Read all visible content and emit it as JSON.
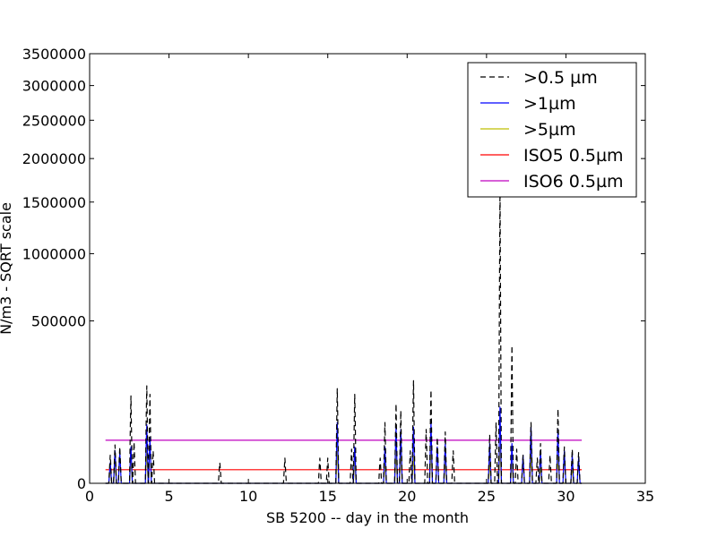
{
  "chart_data": {
    "type": "line",
    "xlabel": "SB 5200 -- day in the month",
    "ylabel": "N/m3 - SQRT scale",
    "y_scale": "sqrt",
    "xlim": [
      0,
      35
    ],
    "ylim": [
      0,
      3500000
    ],
    "grid": false,
    "legend_position": "top-right",
    "x_ticks": [
      0,
      5,
      10,
      15,
      20,
      25,
      30,
      35
    ],
    "y_ticks": [
      0,
      500000,
      1000000,
      1500000,
      2000000,
      2500000,
      3000000,
      3500000
    ],
    "y_tick_labels": [
      "0",
      "500000",
      "1000000",
      "1500000",
      "2000000",
      "2500000",
      "3000000",
      "3500000"
    ],
    "series": [
      {
        "name": ">0.5 µm",
        "color": "#000000",
        "style": "dashed",
        "peaks": [
          [
            1.3,
            15000
          ],
          [
            1.6,
            28000
          ],
          [
            1.9,
            25000
          ],
          [
            2.6,
            145000
          ],
          [
            2.8,
            32000
          ],
          [
            3.6,
            180000
          ],
          [
            3.8,
            150000
          ],
          [
            4.0,
            20000
          ],
          [
            8.2,
            8000
          ],
          [
            12.3,
            12000
          ],
          [
            14.5,
            12000
          ],
          [
            15.0,
            12000
          ],
          [
            15.6,
            170000
          ],
          [
            16.5,
            22000
          ],
          [
            16.7,
            150000
          ],
          [
            18.3,
            12000
          ],
          [
            18.6,
            70000
          ],
          [
            19.3,
            120000
          ],
          [
            19.6,
            100000
          ],
          [
            20.2,
            20000
          ],
          [
            20.4,
            200000
          ],
          [
            21.2,
            55000
          ],
          [
            21.5,
            165000
          ],
          [
            21.9,
            40000
          ],
          [
            22.4,
            50000
          ],
          [
            22.9,
            20000
          ],
          [
            25.2,
            45000
          ],
          [
            25.6,
            70000
          ],
          [
            25.85,
            1700000
          ],
          [
            26.6,
            360000
          ],
          [
            26.9,
            22000
          ],
          [
            27.3,
            15000
          ],
          [
            27.8,
            70000
          ],
          [
            28.2,
            12000
          ],
          [
            28.4,
            30000
          ],
          [
            29.0,
            15000
          ],
          [
            29.5,
            105000
          ],
          [
            29.9,
            25000
          ],
          [
            30.4,
            22000
          ],
          [
            30.8,
            18000
          ]
        ]
      },
      {
        "name": ">1µm",
        "color": "#0000ff",
        "style": "solid",
        "peaks": [
          [
            1.3,
            8000
          ],
          [
            1.6,
            20000
          ],
          [
            1.9,
            18000
          ],
          [
            2.6,
            25000
          ],
          [
            3.6,
            65000
          ],
          [
            3.8,
            40000
          ],
          [
            15.6,
            70000
          ],
          [
            16.7,
            25000
          ],
          [
            18.6,
            25000
          ],
          [
            19.3,
            60000
          ],
          [
            19.6,
            55000
          ],
          [
            20.4,
            60000
          ],
          [
            21.5,
            70000
          ],
          [
            21.9,
            25000
          ],
          [
            22.4,
            30000
          ],
          [
            25.2,
            30000
          ],
          [
            25.85,
            110000
          ],
          [
            26.6,
            30000
          ],
          [
            27.3,
            15000
          ],
          [
            27.8,
            60000
          ],
          [
            28.4,
            20000
          ],
          [
            29.5,
            55000
          ],
          [
            29.9,
            20000
          ],
          [
            30.4,
            15000
          ],
          [
            30.8,
            12000
          ]
        ]
      },
      {
        "name": ">5µm",
        "color": "#bfbf00",
        "style": "solid",
        "peaks": [
          [
            1.3,
            4000
          ],
          [
            1.6,
            8000
          ],
          [
            2.6,
            10000
          ],
          [
            3.6,
            20000
          ],
          [
            15.6,
            20000
          ],
          [
            16.7,
            8000
          ],
          [
            18.6,
            8000
          ],
          [
            19.3,
            15000
          ],
          [
            19.6,
            20000
          ],
          [
            20.4,
            15000
          ],
          [
            21.5,
            20000
          ],
          [
            22.4,
            12000
          ],
          [
            25.2,
            8000
          ],
          [
            25.85,
            25000
          ],
          [
            26.6,
            8000
          ],
          [
            27.8,
            15000
          ],
          [
            28.4,
            6000
          ],
          [
            29.5,
            15000
          ],
          [
            30.4,
            5000
          ]
        ]
      },
      {
        "name": "ISO5 0.5µm",
        "color": "#ff0000",
        "style": "solid",
        "x": [
          1,
          31
        ],
        "y": [
          3520,
          3520
        ]
      },
      {
        "name": "ISO6 0.5µm",
        "color": "#bf00bf",
        "style": "solid",
        "x": [
          1,
          31
        ],
        "y": [
          35200,
          35200
        ]
      }
    ]
  }
}
